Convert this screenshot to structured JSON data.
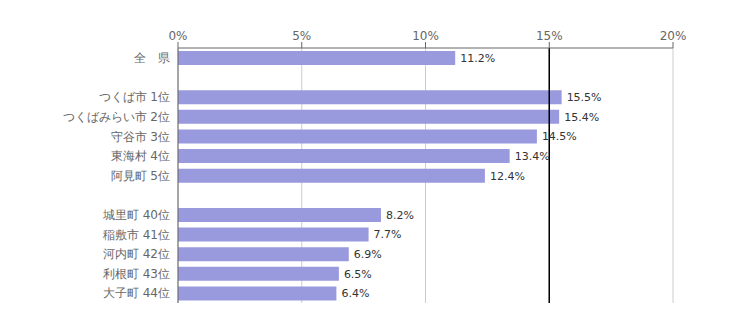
{
  "chart_data": {
    "type": "bar",
    "orientation": "horizontal",
    "categories": [
      "大子町 44位",
      "利根町 43位",
      "河内町 42位",
      "稲敷市 41位",
      "城里町 40位",
      null,
      "阿見町  5位",
      "東海村  4位",
      "守谷市  3位",
      "つくばみらい市  2位",
      "つくば市  1位",
      null,
      "全　県"
    ],
    "values": [
      6.4,
      6.5,
      6.9,
      7.7,
      8.2,
      null,
      12.4,
      13.4,
      14.5,
      15.4,
      15.5,
      null,
      11.2
    ],
    "value_labels": [
      "6.4%",
      "6.5%",
      "6.9%",
      "7.7%",
      "8.2%",
      null,
      "12.4%",
      "13.4%",
      "14.5%",
      "15.4%",
      "15.5%",
      null,
      "11.2%"
    ],
    "data_labels": true,
    "color": "#9999dd",
    "xlim": [
      0,
      20
    ],
    "xticks": [
      {
        "value": 0,
        "label": "0%"
      },
      {
        "value": 5,
        "label": "5%"
      },
      {
        "value": 10,
        "label": "10%"
      },
      {
        "value": 15,
        "label": "15%"
      },
      {
        "value": 20,
        "label": "20%"
      }
    ],
    "grid": true,
    "reference_line": 15
  }
}
